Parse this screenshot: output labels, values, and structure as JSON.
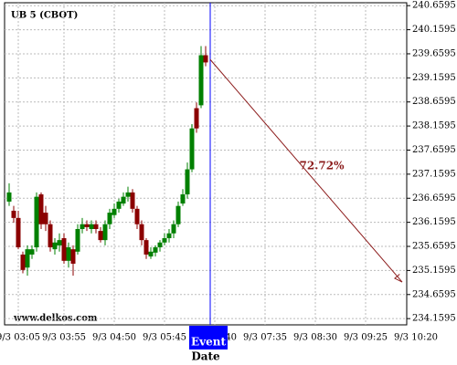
{
  "chart_data": {
    "type": "candlestick",
    "title": "UB 5 (CBOT)",
    "watermark": "www.delkos.com",
    "x_label": "Date",
    "up_color": "#008000",
    "down_color": "#8b0000",
    "x": [
      "9/3 02:55",
      "9/3 03:00",
      "9/3 03:05",
      "9/3 03:10",
      "9/3 03:15",
      "9/3 03:20",
      "9/3 03:25",
      "9/3 03:30",
      "9/3 03:35",
      "9/3 03:40",
      "9/3 03:45",
      "9/3 03:50",
      "9/3 03:55",
      "9/3 04:00",
      "9/3 04:05",
      "9/3 04:10",
      "9/3 04:15",
      "9/3 04:20",
      "9/3 04:25",
      "9/3 04:30",
      "9/3 04:35",
      "9/3 04:40",
      "9/3 04:45",
      "9/3 04:50",
      "9/3 04:55",
      "9/3 05:00",
      "9/3 05:05",
      "9/3 05:10",
      "9/3 05:15",
      "9/3 05:20",
      "9/3 05:25",
      "9/3 05:30",
      "9/3 05:35",
      "9/3 05:40",
      "9/3 05:45",
      "9/3 05:50",
      "9/3 05:55",
      "9/3 06:00",
      "9/3 06:05",
      "9/3 06:10",
      "9/3 06:15",
      "9/3 06:20",
      "9/3 06:25",
      "9/3 06:30"
    ],
    "open": [
      236.59,
      236.4,
      236.25,
      235.49,
      235.22,
      235.49,
      235.64,
      236.74,
      236.36,
      236.12,
      235.6,
      235.68,
      235.83,
      235.36,
      235.6,
      235.55,
      236.02,
      236.12,
      236.02,
      236.12,
      235.98,
      235.79,
      236.12,
      236.31,
      236.44,
      236.55,
      236.69,
      236.78,
      236.44,
      236.12,
      235.79,
      235.45,
      235.53,
      235.64,
      235.74,
      235.83,
      235.93,
      236.12,
      236.55,
      236.74,
      237.26,
      238.53,
      238.59,
      239.63
    ],
    "high": [
      236.97,
      236.5,
      236.4,
      235.55,
      235.68,
      235.68,
      236.78,
      236.78,
      236.5,
      236.2,
      235.83,
      235.93,
      235.93,
      235.74,
      235.68,
      236.12,
      236.25,
      236.2,
      236.2,
      236.2,
      236.06,
      236.2,
      236.44,
      236.55,
      236.65,
      236.78,
      236.9,
      236.85,
      236.5,
      236.2,
      235.83,
      235.64,
      235.68,
      235.79,
      235.93,
      236.02,
      236.2,
      236.59,
      236.85,
      237.4,
      238.2,
      238.65,
      239.82,
      239.82
    ],
    "low": [
      236.5,
      236.15,
      235.6,
      235.1,
      235.05,
      235.4,
      235.55,
      236.02,
      235.98,
      235.55,
      235.49,
      235.55,
      235.3,
      235.22,
      235.05,
      235.49,
      235.93,
      235.98,
      235.93,
      235.93,
      235.74,
      235.68,
      236.02,
      236.25,
      236.36,
      236.5,
      236.59,
      236.36,
      236.02,
      235.68,
      235.4,
      235.4,
      235.45,
      235.55,
      235.68,
      235.74,
      235.83,
      236.06,
      236.5,
      236.65,
      237.2,
      238.02,
      238.53,
      239.4
    ],
    "close": [
      236.78,
      236.25,
      235.64,
      235.17,
      235.6,
      235.6,
      236.69,
      236.12,
      236.12,
      235.64,
      235.74,
      235.79,
      235.36,
      235.64,
      235.3,
      236.02,
      236.12,
      236.06,
      236.12,
      236.02,
      235.79,
      236.12,
      236.36,
      236.44,
      236.59,
      236.69,
      236.78,
      236.44,
      236.12,
      235.79,
      235.49,
      235.55,
      235.64,
      235.74,
      235.83,
      235.93,
      236.12,
      236.5,
      236.74,
      237.26,
      238.11,
      238.11,
      239.63,
      239.48
    ],
    "xlim": [
      "9/3 02:50",
      "9/3 10:10"
    ],
    "xticks": [
      "9/3 03:05",
      "9/3 03:55",
      "9/3 04:50",
      "9/3 05:45",
      "9/3 06:40",
      "9/3 07:35",
      "9/3 08:30",
      "9/3 09:25",
      "9/3 10:20"
    ],
    "ylim": [
      234.03,
      240.72
    ],
    "yticks": [
      234.1595,
      234.6595,
      235.1595,
      235.6595,
      236.1595,
      236.6595,
      237.1595,
      237.6595,
      238.1595,
      238.6595,
      239.1595,
      239.6595,
      240.1595,
      240.6595
    ],
    "grid": true,
    "event": {
      "label": "Event",
      "x": "9/3 06:35",
      "color": "#0000ff"
    },
    "arrow": {
      "x": [
        "9/3 06:35",
        "9/3 10:05"
      ],
      "y": [
        239.54,
        234.92
      ],
      "label": "72.72%",
      "color": "#8b1a1a"
    }
  }
}
